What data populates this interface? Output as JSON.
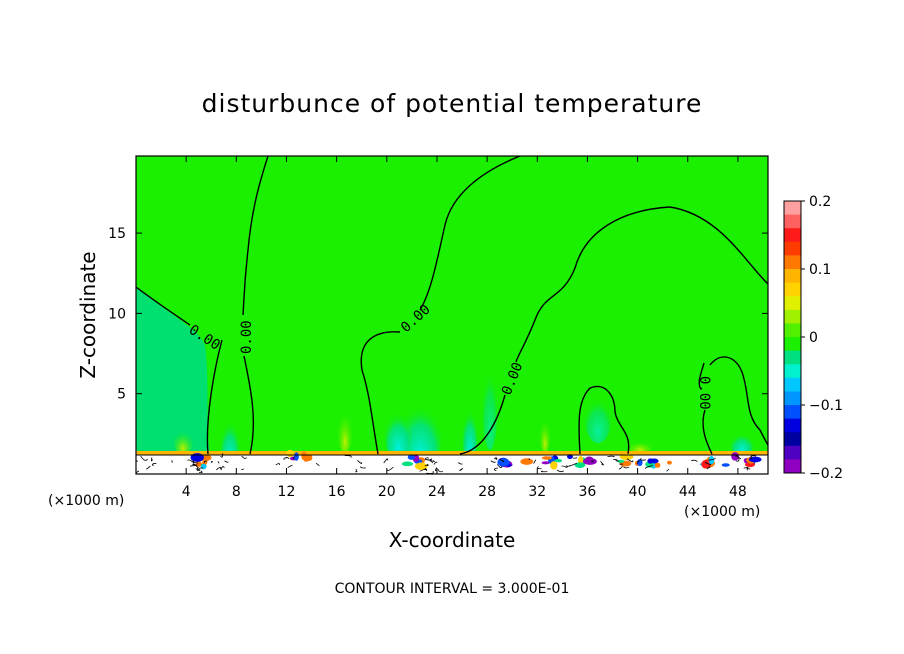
{
  "chart_data": {
    "type": "heatmap",
    "title": "disturbunce of potential temperature",
    "xlabel": "X-coordinate",
    "ylabel": "Z-coordinate",
    "x_unit": "(×1000 m)",
    "y_unit": "(×1000 m)",
    "xlim": [
      0,
      50.4
    ],
    "ylim": [
      0,
      19.8
    ],
    "x_ticks": [
      4,
      8,
      12,
      16,
      20,
      24,
      28,
      32,
      36,
      40,
      44,
      48
    ],
    "y_ticks": [
      5,
      10,
      15
    ],
    "colorbar": {
      "range": [
        -0.2,
        0.2
      ],
      "tick_values": [
        0.2,
        0.1,
        0,
        -0.1,
        -0.2
      ],
      "tick_labels": [
        "0.2",
        "0.1",
        "0",
        "−0.1",
        "−0.2"
      ],
      "colors": [
        "#ffa0a0",
        "#ff6060",
        "#ff1a1a",
        "#ff3c00",
        "#ff7800",
        "#ffb400",
        "#ffd200",
        "#e0f000",
        "#a0f000",
        "#50f000",
        "#1af000",
        "#00e080",
        "#00f0d0",
        "#00c8ff",
        "#0096ff",
        "#0050ff",
        "#0000e0",
        "#0000a0",
        "#5000c0",
        "#9000c0"
      ]
    },
    "contour_label": "0.00",
    "contour_interval_text": "CONTOUR INTERVAL = 3.000E-01",
    "background_value": 0
  }
}
